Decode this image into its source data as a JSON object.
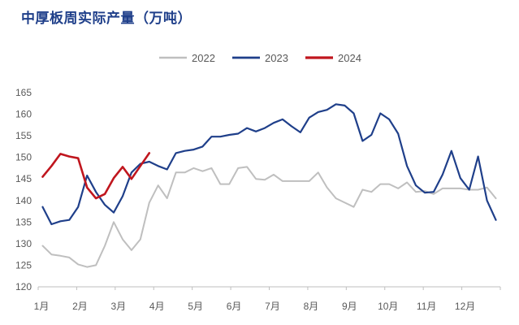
{
  "chart_data": {
    "type": "line",
    "title": "中厚板周实际产量（万吨）",
    "xlabel": "",
    "ylabel": "",
    "ylim": [
      120,
      165
    ],
    "yticks": [
      120,
      125,
      130,
      135,
      140,
      145,
      150,
      155,
      160,
      165
    ],
    "month_labels": [
      "1月",
      "2月",
      "3月",
      "4月",
      "5月",
      "6月",
      "7月",
      "8月",
      "9月",
      "10月",
      "11月",
      "12月"
    ],
    "x_unit": "week",
    "legend_position": "top-center",
    "grid": false,
    "series": [
      {
        "name": "2022",
        "color": "#bfbfbf",
        "line_width": 2,
        "values": [
          129.5,
          127.5,
          127.2,
          126.8,
          125.2,
          124.6,
          125.0,
          129.5,
          135.0,
          131.0,
          128.5,
          131.0,
          139.5,
          143.5,
          140.5,
          146.5,
          146.5,
          147.5,
          146.8,
          147.5,
          143.8,
          143.8,
          147.5,
          147.8,
          145.0,
          144.8,
          146.0,
          144.5,
          144.5,
          144.5,
          144.5,
          146.5,
          143.0,
          140.5,
          139.5,
          138.5,
          142.5,
          142.0,
          143.8,
          143.8,
          142.8,
          144.2,
          142.0,
          142.2,
          141.5,
          142.8,
          142.8,
          142.8,
          142.5,
          142.5,
          143.0,
          140.5
        ]
      },
      {
        "name": "2023",
        "color": "#1f3f8a",
        "line_width": 2.2,
        "values": [
          138.5,
          134.5,
          135.2,
          135.5,
          138.5,
          145.8,
          142.0,
          139.0,
          137.2,
          141.0,
          146.5,
          148.5,
          149.0,
          148.0,
          147.2,
          151.0,
          151.5,
          151.8,
          152.5,
          154.8,
          154.8,
          155.2,
          155.5,
          156.8,
          156.0,
          156.8,
          158.0,
          158.8,
          157.2,
          155.8,
          159.2,
          160.5,
          161.0,
          162.3,
          162.0,
          160.2,
          153.8,
          155.2,
          160.2,
          158.8,
          155.5,
          148.0,
          143.5,
          141.8,
          142.0,
          146.0,
          151.5,
          145.2,
          142.5,
          150.2,
          140.0,
          135.5
        ]
      },
      {
        "name": "2024",
        "color": "#c0161e",
        "line_width": 2.6,
        "values": [
          145.5,
          148.0,
          150.8,
          150.2,
          149.8,
          143.0,
          140.5,
          141.5,
          145.2,
          147.8,
          145.0,
          148.0,
          151.0
        ]
      }
    ]
  }
}
